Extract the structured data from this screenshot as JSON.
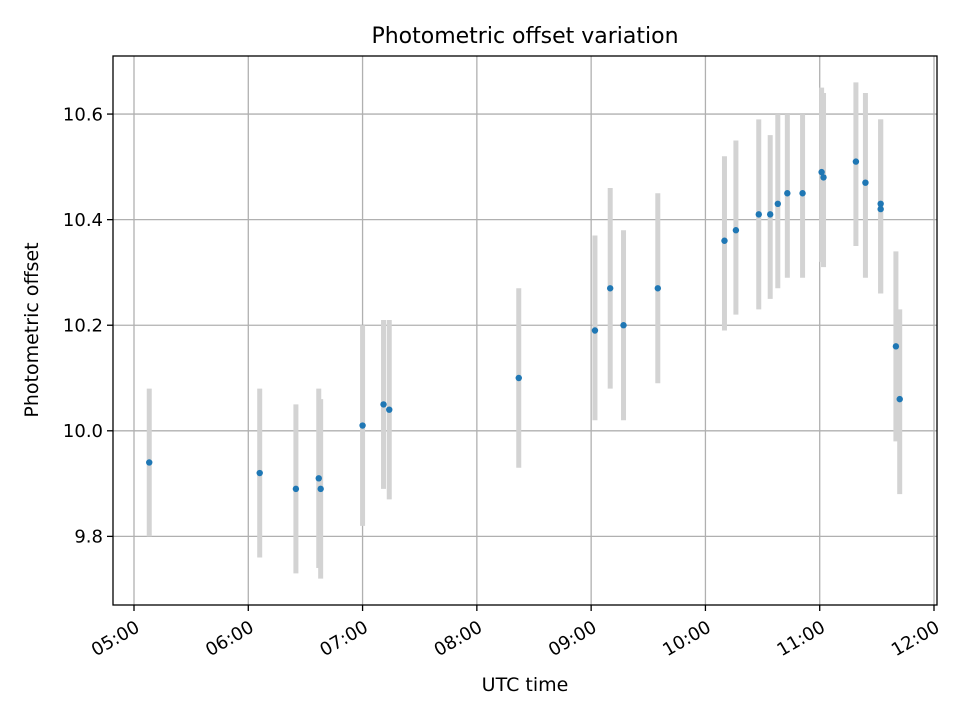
{
  "chart_data": {
    "type": "scatter",
    "title": "Photometric offset variation",
    "xlabel": "UTC time",
    "ylabel": "Photometric offset",
    "xlim": [
      "04:50",
      "12:00"
    ],
    "ylim": [
      9.67,
      10.71
    ],
    "grid": true,
    "x_ticks": [
      "05:00",
      "06:00",
      "07:00",
      "08:00",
      "09:00",
      "10:00",
      "11:00",
      "12:00"
    ],
    "y_ticks": [
      9.8,
      10.0,
      10.2,
      10.4,
      10.6
    ],
    "y_tick_labels": [
      "9.8",
      "10.0",
      "10.2",
      "10.4",
      "10.6"
    ],
    "colors": {
      "point": "#1f77b4",
      "errorbar": "#d3d3d3",
      "grid": "#b0b0b0"
    },
    "points": [
      {
        "x": "05:08",
        "y": 9.94,
        "ylow": 9.8,
        "yhigh": 10.08
      },
      {
        "x": "06:06",
        "y": 9.92,
        "ylow": 9.76,
        "yhigh": 10.08
      },
      {
        "x": "06:25",
        "y": 9.89,
        "ylow": 9.73,
        "yhigh": 10.05
      },
      {
        "x": "06:37",
        "y": 9.91,
        "ylow": 9.74,
        "yhigh": 10.08
      },
      {
        "x": "06:38",
        "y": 9.89,
        "ylow": 9.72,
        "yhigh": 10.06
      },
      {
        "x": "07:00",
        "y": 10.01,
        "ylow": 9.82,
        "yhigh": 10.2
      },
      {
        "x": "07:11",
        "y": 10.05,
        "ylow": 9.89,
        "yhigh": 10.21
      },
      {
        "x": "07:14",
        "y": 10.04,
        "ylow": 9.87,
        "yhigh": 10.21
      },
      {
        "x": "08:22",
        "y": 10.1,
        "ylow": 9.93,
        "yhigh": 10.27
      },
      {
        "x": "09:02",
        "y": 10.19,
        "ylow": 10.02,
        "yhigh": 10.37
      },
      {
        "x": "09:10",
        "y": 10.27,
        "ylow": 10.08,
        "yhigh": 10.46
      },
      {
        "x": "09:17",
        "y": 10.2,
        "ylow": 10.02,
        "yhigh": 10.38
      },
      {
        "x": "09:35",
        "y": 10.27,
        "ylow": 10.09,
        "yhigh": 10.45
      },
      {
        "x": "10:10",
        "y": 10.36,
        "ylow": 10.19,
        "yhigh": 10.52
      },
      {
        "x": "10:16",
        "y": 10.38,
        "ylow": 10.22,
        "yhigh": 10.55
      },
      {
        "x": "10:28",
        "y": 10.41,
        "ylow": 10.23,
        "yhigh": 10.59
      },
      {
        "x": "10:34",
        "y": 10.41,
        "ylow": 10.25,
        "yhigh": 10.56
      },
      {
        "x": "10:38",
        "y": 10.43,
        "ylow": 10.27,
        "yhigh": 10.6
      },
      {
        "x": "10:43",
        "y": 10.45,
        "ylow": 10.29,
        "yhigh": 10.6
      },
      {
        "x": "10:51",
        "y": 10.45,
        "ylow": 10.29,
        "yhigh": 10.6
      },
      {
        "x": "11:01",
        "y": 10.49,
        "ylow": 10.32,
        "yhigh": 10.65
      },
      {
        "x": "11:02",
        "y": 10.48,
        "ylow": 10.31,
        "yhigh": 10.64
      },
      {
        "x": "11:19",
        "y": 10.51,
        "ylow": 10.35,
        "yhigh": 10.66
      },
      {
        "x": "11:24",
        "y": 10.47,
        "ylow": 10.29,
        "yhigh": 10.64
      },
      {
        "x": "11:32",
        "y": 10.43,
        "ylow": 10.26,
        "yhigh": 10.59
      },
      {
        "x": "11:32",
        "y": 10.42,
        "ylow": 10.26,
        "yhigh": 10.59
      },
      {
        "x": "11:40",
        "y": 10.16,
        "ylow": 9.98,
        "yhigh": 10.34
      },
      {
        "x": "11:42",
        "y": 10.06,
        "ylow": 9.88,
        "yhigh": 10.23
      }
    ]
  }
}
